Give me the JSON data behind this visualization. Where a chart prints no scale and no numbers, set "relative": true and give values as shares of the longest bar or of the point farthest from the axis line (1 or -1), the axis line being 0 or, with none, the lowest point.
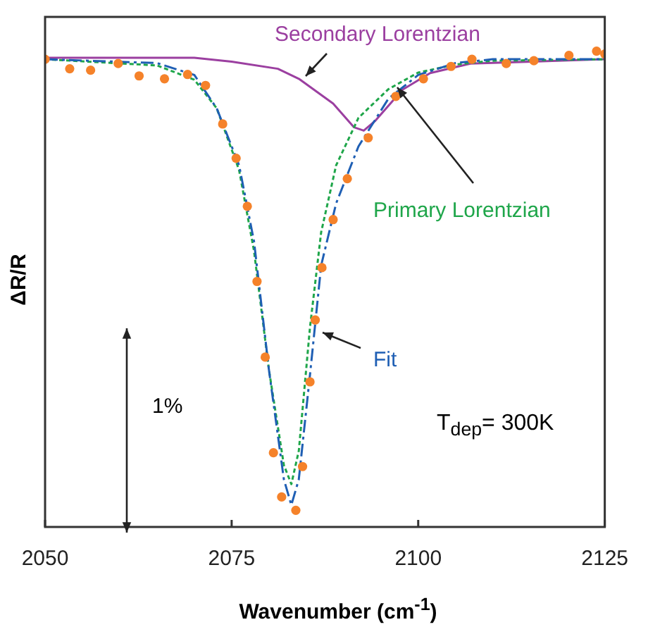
{
  "chart_data": {
    "type": "line",
    "relative": true,
    "xlabel": "Wavenumber (cm$^{-1}$)",
    "ylabel": "ΔR/R",
    "xlim": [
      2050,
      2125
    ],
    "xticks": [
      2050,
      2075,
      2100,
      2125
    ],
    "grid": false,
    "legend": false,
    "annotations": [
      "1%",
      "T$_{dep}$= 300K"
    ],
    "series": [
      {
        "type": "scatter",
        "marker": "circle",
        "color": "#f5822a",
        "x": [
          2050,
          2053.3,
          2056.1,
          2059.8,
          2062.6,
          2066,
          2069.1,
          2071.5,
          2073.8,
          2075.6,
          2077.1,
          2078.4,
          2079.5,
          2080.6,
          2081.7,
          2083.6,
          2084.5,
          2085.5,
          2086.2,
          2087.1,
          2088.6,
          2090.5,
          2093.3,
          2097,
          2100.7,
          2104.4,
          2107.2,
          2111.8,
          2115.5,
          2120.2,
          2123.9,
          2125
        ],
        "values": [
          0.983,
          0.963,
          0.96,
          0.974,
          0.948,
          0.942,
          0.951,
          0.928,
          0.847,
          0.775,
          0.674,
          0.516,
          0.357,
          0.156,
          0.063,
          0.035,
          0.127,
          0.305,
          0.435,
          0.545,
          0.646,
          0.732,
          0.818,
          0.905,
          0.942,
          0.968,
          0.983,
          0.974,
          0.98,
          0.991,
          1,
          0.994
        ]
      },
      {
        "name": "Fit",
        "type": "line",
        "marker": "none",
        "line_style": "dashed",
        "color": "#1f5fb4",
        "x": [
          2050,
          2065,
          2070,
          2073,
          2076,
          2078,
          2080,
          2082,
          2083,
          2084,
          2085.5,
          2087,
          2089,
          2092,
          2096,
          2100,
          2105,
          2110,
          2125
        ],
        "values": [
          0.983,
          0.975,
          0.95,
          0.88,
          0.76,
          0.6,
          0.33,
          0.1,
          0.046,
          0.1,
          0.32,
          0.55,
          0.68,
          0.8,
          0.9,
          0.95,
          0.975,
          0.983,
          0.983
        ]
      },
      {
        "name": "Primary Lorentzian",
        "type": "line",
        "marker": "none",
        "line_style": "dotted",
        "color": "#1fa64a",
        "x": [
          2050,
          2065,
          2070,
          2073,
          2076,
          2078,
          2080,
          2082,
          2083,
          2084,
          2085.5,
          2087,
          2089,
          2092,
          2096,
          2100,
          2105,
          2110,
          2125
        ],
        "values": [
          0.983,
          0.97,
          0.94,
          0.88,
          0.75,
          0.58,
          0.33,
          0.13,
          0.09,
          0.16,
          0.42,
          0.62,
          0.76,
          0.86,
          0.92,
          0.955,
          0.972,
          0.98,
          0.983
        ]
      },
      {
        "name": "Secondary Lorentzian",
        "type": "line",
        "marker": "none",
        "line_style": "solid",
        "color": "#9b3fa0",
        "x": [
          2050,
          2070,
          2075,
          2081.2,
          2084,
          2088.6,
          2091.4,
          2092.7,
          2094.2,
          2097.9,
          2101.6,
          2107,
          2125
        ],
        "values": [
          0.986,
          0.986,
          0.978,
          0.963,
          0.942,
          0.89,
          0.84,
          0.833,
          0.853,
          0.919,
          0.954,
          0.974,
          0.983
        ]
      }
    ]
  }
}
